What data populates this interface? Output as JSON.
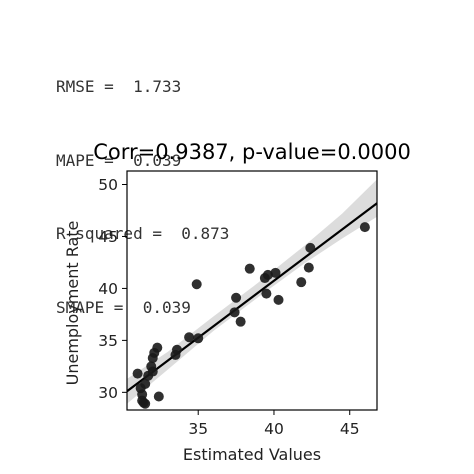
{
  "stats": [
    "RMSE =  1.733",
    "MAPE =  0.039",
    "R-squared =  0.873",
    "SMAPE =  0.039"
  ],
  "chart_data": {
    "type": "scatter",
    "title": "Corr=0.9387, p-value=0.0000",
    "xlabel": "Estimated Values",
    "ylabel": "Unemployment Rate",
    "xlim": [
      30.3,
      46.8
    ],
    "ylim": [
      28.3,
      51.3
    ],
    "xticks": [
      35,
      40,
      45
    ],
    "yticks": [
      30,
      35,
      40,
      45,
      50
    ],
    "grid": false,
    "points": [
      {
        "x": 31.0,
        "y": 31.8
      },
      {
        "x": 31.2,
        "y": 30.4
      },
      {
        "x": 31.3,
        "y": 29.8
      },
      {
        "x": 31.4,
        "y": 29.0
      },
      {
        "x": 31.5,
        "y": 28.9
      },
      {
        "x": 31.3,
        "y": 29.2
      },
      {
        "x": 31.5,
        "y": 30.8
      },
      {
        "x": 31.7,
        "y": 31.6
      },
      {
        "x": 31.9,
        "y": 32.5
      },
      {
        "x": 32.0,
        "y": 32.0
      },
      {
        "x": 32.0,
        "y": 33.3
      },
      {
        "x": 32.1,
        "y": 33.8
      },
      {
        "x": 32.3,
        "y": 34.3
      },
      {
        "x": 32.4,
        "y": 29.6
      },
      {
        "x": 33.5,
        "y": 33.6
      },
      {
        "x": 33.6,
        "y": 34.1
      },
      {
        "x": 34.4,
        "y": 35.3
      },
      {
        "x": 34.9,
        "y": 40.4
      },
      {
        "x": 35.0,
        "y": 35.2
      },
      {
        "x": 37.4,
        "y": 37.7
      },
      {
        "x": 37.5,
        "y": 39.1
      },
      {
        "x": 37.8,
        "y": 36.8
      },
      {
        "x": 38.4,
        "y": 41.9
      },
      {
        "x": 39.4,
        "y": 41.0
      },
      {
        "x": 39.5,
        "y": 39.5
      },
      {
        "x": 39.6,
        "y": 41.3
      },
      {
        "x": 40.1,
        "y": 41.5
      },
      {
        "x": 40.3,
        "y": 38.9
      },
      {
        "x": 41.8,
        "y": 40.6
      },
      {
        "x": 42.3,
        "y": 42.0
      },
      {
        "x": 42.4,
        "y": 43.9
      },
      {
        "x": 46.0,
        "y": 45.9
      }
    ],
    "regression": {
      "x": [
        30.3,
        46.8
      ],
      "y": [
        30.1,
        48.2
      ]
    },
    "confidence_band": {
      "x": [
        30.3,
        33.0,
        36.0,
        39.0,
        42.0,
        44.5,
        46.8
      ],
      "upper": [
        31.3,
        33.9,
        37.3,
        40.6,
        44.1,
        47.2,
        50.5
      ],
      "lower": [
        28.9,
        32.2,
        35.9,
        39.2,
        42.4,
        44.8,
        46.9
      ]
    },
    "colors": {
      "points": "#1a1a1a",
      "line": "#000000",
      "band": "#d0d0d0"
    }
  }
}
